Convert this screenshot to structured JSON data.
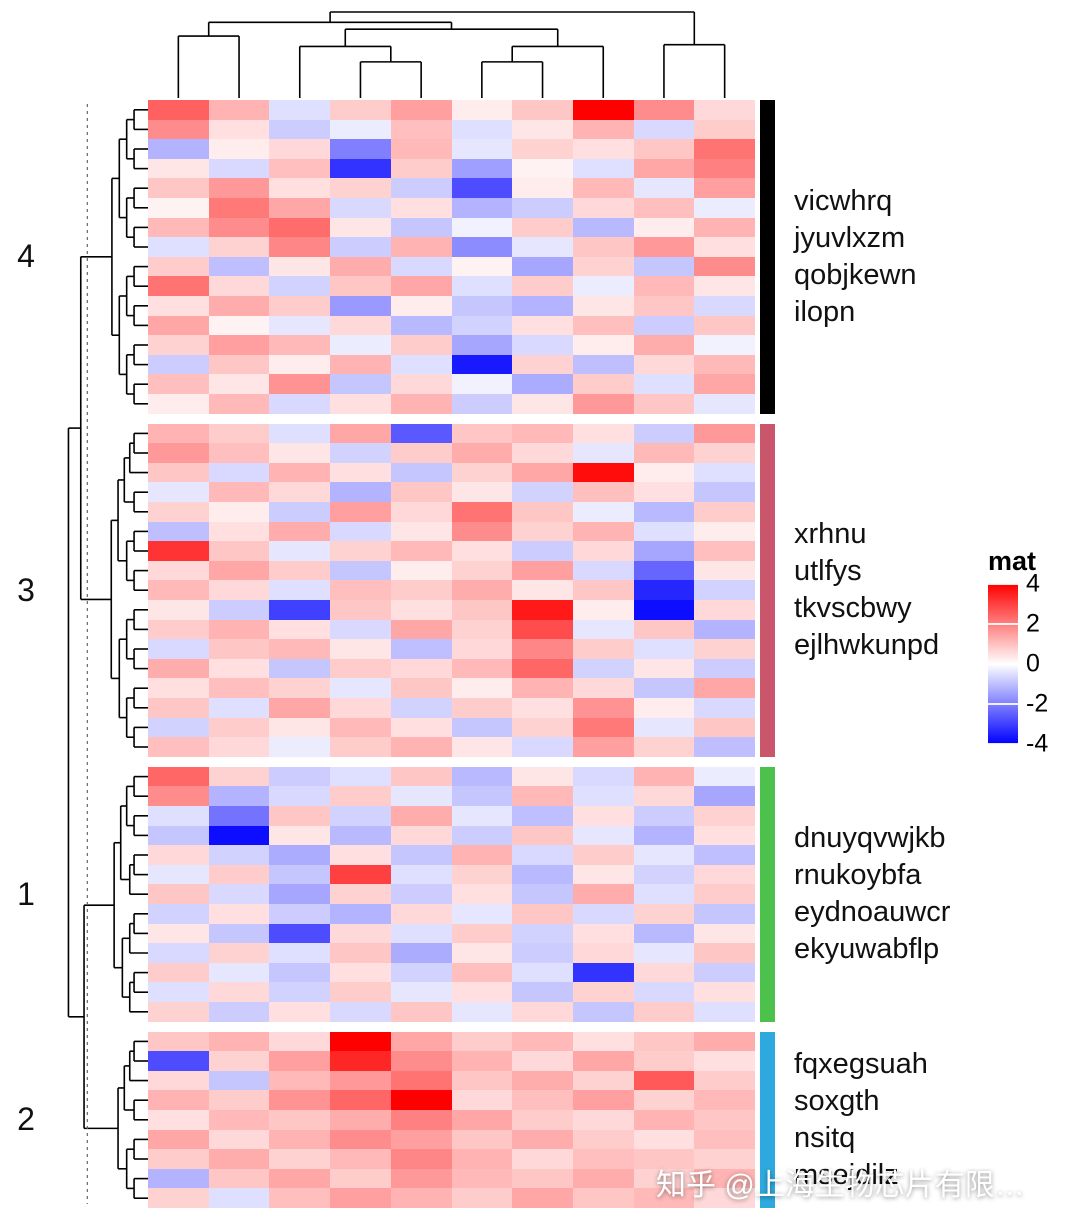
{
  "watermark": "知乎 @上海生物芯片有限…",
  "chart_data": {
    "type": "heatmap",
    "legend_title": "mat",
    "legend_ticks": [
      4,
      2,
      0,
      -2,
      -4
    ],
    "colorscale": {
      "domain": [
        -4,
        0,
        4
      ],
      "colors": [
        "#0000FF",
        "#FFFFFF",
        "#FF0000"
      ]
    },
    "n_columns": 10,
    "row_cluster_order": [
      "4",
      "3",
      "1",
      "2"
    ],
    "column_dendrogram": {
      "h": 1.0,
      "children": [
        {
          "h": 0.88,
          "children": [
            {
              "h": 0.72,
              "children": [
                {
                  "leaf": 0
                },
                {
                  "leaf": 1
                }
              ]
            },
            {
              "h": 0.8,
              "children": [
                {
                  "h": 0.6,
                  "children": [
                    {
                      "leaf": 2
                    },
                    {
                      "h": 0.42,
                      "children": [
                        {
                          "leaf": 3
                        },
                        {
                          "leaf": 4
                        }
                      ]
                    }
                  ]
                },
                {
                  "h": 0.6,
                  "children": [
                    {
                      "h": 0.42,
                      "children": [
                        {
                          "leaf": 5
                        },
                        {
                          "leaf": 6
                        }
                      ]
                    },
                    {
                      "leaf": 7
                    }
                  ]
                }
              ]
            }
          ]
        },
        {
          "h": 0.62,
          "children": [
            {
              "leaf": 8
            },
            {
              "leaf": 9
            }
          ]
        }
      ]
    },
    "row_groups": [
      {
        "cluster_label": "4",
        "annotation_color": "#000000",
        "gene_labels": [
          "vicwhrq",
          "jyuvlxzm",
          "qobjkewn",
          "ilopn"
        ],
        "values": [
          [
            2.5,
            1.2,
            -0.5,
            0.8,
            1.5,
            0.3,
            0.9,
            4.0,
            1.8,
            0.6
          ],
          [
            1.8,
            0.5,
            -0.8,
            -0.3,
            1.0,
            -0.5,
            0.4,
            1.2,
            -0.6,
            0.8
          ],
          [
            -1.2,
            0.3,
            0.6,
            -2.0,
            1.1,
            -0.4,
            0.7,
            0.5,
            0.9,
            2.2
          ],
          [
            0.4,
            -0.6,
            1.0,
            -3.2,
            0.8,
            -1.5,
            0.2,
            -0.5,
            1.4,
            2.0
          ],
          [
            0.9,
            1.6,
            0.5,
            0.7,
            -0.8,
            -2.8,
            0.3,
            1.1,
            -0.4,
            1.5
          ],
          [
            0.2,
            2.1,
            1.4,
            -0.6,
            0.5,
            -1.2,
            -0.8,
            0.6,
            1.0,
            -0.3
          ],
          [
            1.1,
            1.8,
            2.3,
            0.4,
            -0.9,
            -0.2,
            0.8,
            -1.1,
            0.3,
            1.2
          ],
          [
            -0.5,
            0.7,
            1.9,
            -0.8,
            1.2,
            -1.8,
            -0.4,
            0.9,
            1.6,
            0.5
          ],
          [
            0.8,
            -1.0,
            0.4,
            1.3,
            -0.6,
            0.2,
            -1.4,
            0.7,
            -0.9,
            1.8
          ],
          [
            2.2,
            0.6,
            -0.7,
            0.9,
            1.4,
            -0.5,
            0.8,
            -0.3,
            1.1,
            0.4
          ],
          [
            0.5,
            1.3,
            0.8,
            -1.6,
            0.3,
            -0.9,
            -1.2,
            0.4,
            0.9,
            -0.6
          ],
          [
            1.4,
            0.2,
            -0.4,
            0.6,
            -1.1,
            -0.7,
            0.5,
            1.0,
            -0.8,
            0.9
          ],
          [
            0.7,
            1.5,
            1.1,
            -0.3,
            0.8,
            -1.4,
            -0.6,
            0.3,
            1.3,
            -0.2
          ],
          [
            -0.8,
            0.9,
            0.3,
            1.2,
            -0.5,
            -3.6,
            0.7,
            -1.0,
            0.6,
            1.1
          ],
          [
            1.0,
            0.4,
            1.7,
            -0.9,
            0.6,
            -0.2,
            -1.3,
            0.8,
            -0.5,
            1.4
          ],
          [
            0.3,
            1.1,
            -0.6,
            0.5,
            1.2,
            -0.8,
            0.4,
            1.6,
            0.9,
            -0.4
          ]
        ]
      },
      {
        "cluster_label": "3",
        "annotation_color": "#C9566B",
        "gene_labels": [
          "xrhnu",
          "utlfys",
          "tkvscbwy",
          "ejlhwkunpd"
        ],
        "values": [
          [
            1.2,
            0.8,
            -0.5,
            1.4,
            -2.6,
            0.9,
            1.1,
            0.5,
            -0.8,
            1.6
          ],
          [
            1.6,
            1.0,
            0.4,
            -0.7,
            0.8,
            1.3,
            0.6,
            -0.4,
            1.1,
            0.7
          ],
          [
            0.9,
            -0.6,
            1.2,
            0.5,
            -0.9,
            0.7,
            1.4,
            3.8,
            0.3,
            -0.5
          ],
          [
            -0.4,
            1.1,
            0.6,
            -1.2,
            0.9,
            0.4,
            -0.7,
            1.0,
            0.5,
            -0.9
          ],
          [
            0.7,
            0.3,
            -0.8,
            1.5,
            0.6,
            2.2,
            0.9,
            -0.3,
            -1.1,
            0.8
          ],
          [
            -1.0,
            0.5,
            1.3,
            -0.6,
            0.4,
            1.8,
            0.7,
            1.2,
            -0.5,
            0.3
          ],
          [
            3.2,
            0.9,
            -0.4,
            0.7,
            1.1,
            0.5,
            -0.8,
            0.6,
            -1.4,
            1.0
          ],
          [
            0.6,
            1.4,
            0.8,
            -0.9,
            0.3,
            0.7,
            1.5,
            -0.6,
            -2.4,
            0.4
          ],
          [
            1.1,
            0.6,
            -0.5,
            1.0,
            0.8,
            1.3,
            0.4,
            0.9,
            -3.4,
            -0.7
          ],
          [
            0.4,
            -0.8,
            -3.0,
            0.9,
            0.5,
            0.9,
            3.6,
            0.3,
            -3.8,
            0.6
          ],
          [
            0.8,
            1.2,
            0.5,
            -0.6,
            1.4,
            0.7,
            2.8,
            -0.4,
            0.9,
            -1.2
          ],
          [
            -0.6,
            0.9,
            1.1,
            0.4,
            -1.0,
            0.6,
            1.9,
            0.8,
            -0.5,
            0.7
          ],
          [
            1.3,
            0.5,
            -0.9,
            0.8,
            0.6,
            1.1,
            2.4,
            -0.7,
            0.4,
            -0.8
          ],
          [
            0.5,
            1.0,
            0.7,
            -0.4,
            0.9,
            0.3,
            1.2,
            0.6,
            -0.9,
            1.4
          ],
          [
            0.9,
            -0.5,
            1.4,
            0.6,
            -0.7,
            0.8,
            0.5,
            1.7,
            0.3,
            -0.6
          ],
          [
            -0.7,
            0.8,
            0.4,
            1.1,
            0.5,
            -0.9,
            0.7,
            2.1,
            -0.4,
            0.9
          ],
          [
            1.0,
            0.6,
            -0.3,
            0.8,
            1.2,
            0.4,
            -0.6,
            1.5,
            0.7,
            -1.0
          ]
        ]
      },
      {
        "cluster_label": "1",
        "annotation_color": "#4CC24C",
        "gene_labels": [
          "dnuyqvwjkb",
          "rnukoybfa",
          "eydnoauwcr",
          "ekyuwabflp"
        ],
        "values": [
          [
            2.4,
            0.7,
            -0.8,
            -0.5,
            0.9,
            -1.1,
            0.4,
            -0.6,
            1.2,
            -0.3
          ],
          [
            1.8,
            -1.2,
            -0.6,
            0.8,
            -0.4,
            -0.9,
            1.1,
            -0.5,
            0.6,
            -1.4
          ],
          [
            -0.5,
            -2.2,
            0.9,
            -0.7,
            1.3,
            -0.4,
            -1.0,
            0.5,
            -0.8,
            0.7
          ],
          [
            -0.9,
            -3.8,
            0.4,
            -1.1,
            0.6,
            -0.8,
            0.9,
            -0.4,
            -1.2,
            0.5
          ],
          [
            0.6,
            -0.7,
            -1.3,
            0.5,
            -0.9,
            1.2,
            -0.6,
            0.8,
            -0.4,
            -1.0
          ],
          [
            -0.4,
            0.8,
            -0.9,
            3.0,
            -0.5,
            0.7,
            -1.1,
            0.4,
            -0.7,
            0.6
          ],
          [
            0.9,
            -0.6,
            -1.4,
            0.7,
            -0.8,
            0.5,
            -0.9,
            1.3,
            -0.5,
            0.8
          ],
          [
            -0.7,
            0.5,
            -0.8,
            -1.2,
            0.6,
            -0.4,
            0.9,
            -0.6,
            0.7,
            -0.9
          ],
          [
            0.4,
            -0.9,
            -2.8,
            0.6,
            -0.5,
            0.8,
            -0.7,
            0.5,
            -1.1,
            0.4
          ],
          [
            -0.6,
            0.7,
            -0.5,
            0.9,
            -1.3,
            0.4,
            -0.8,
            0.6,
            -0.4,
            0.9
          ],
          [
            0.8,
            -0.4,
            -0.9,
            0.5,
            -0.7,
            1.0,
            -0.5,
            -3.2,
            0.6,
            -0.8
          ],
          [
            -0.5,
            0.6,
            -0.7,
            0.8,
            -0.4,
            0.5,
            -0.9,
            0.7,
            -0.6,
            0.5
          ],
          [
            0.7,
            -0.8,
            0.5,
            -0.6,
            0.9,
            -0.4,
            0.6,
            -0.9,
            0.8,
            -0.5
          ]
        ]
      },
      {
        "cluster_label": "2",
        "annotation_color": "#2EA9DF",
        "gene_labels": [
          "fqxegsuah",
          "soxgth",
          "nsitq",
          "msejdilz"
        ],
        "values": [
          [
            0.9,
            1.2,
            0.6,
            4.0,
            1.4,
            0.8,
            1.1,
            0.5,
            0.9,
            1.3
          ],
          [
            -2.8,
            0.7,
            1.5,
            3.4,
            1.8,
            1.2,
            0.6,
            1.4,
            0.8,
            0.5
          ],
          [
            0.6,
            -0.9,
            1.1,
            1.6,
            2.2,
            0.9,
            1.3,
            0.7,
            2.6,
            0.8
          ],
          [
            1.2,
            0.8,
            1.7,
            2.4,
            4.0,
            0.6,
            1.0,
            1.5,
            0.7,
            1.1
          ],
          [
            0.5,
            1.1,
            0.9,
            1.3,
            2.0,
            1.4,
            0.8,
            0.6,
            1.2,
            0.9
          ],
          [
            1.4,
            0.6,
            1.2,
            1.8,
            1.5,
            0.9,
            1.3,
            0.8,
            0.5,
            1.0
          ],
          [
            0.8,
            1.3,
            0.7,
            1.1,
            1.9,
            1.2,
            0.6,
            1.0,
            0.9,
            0.7
          ],
          [
            -1.2,
            0.9,
            1.4,
            0.8,
            1.6,
            1.1,
            0.9,
            1.3,
            0.7,
            1.2
          ],
          [
            0.7,
            -0.5,
            1.0,
            1.5,
            1.2,
            0.8,
            1.4,
            0.9,
            1.1,
            0.6
          ]
        ]
      }
    ]
  }
}
